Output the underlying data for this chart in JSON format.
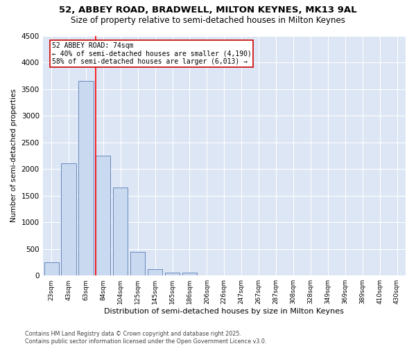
{
  "title1": "52, ABBEY ROAD, BRADWELL, MILTON KEYNES, MK13 9AL",
  "title2": "Size of property relative to semi-detached houses in Milton Keynes",
  "xlabel": "Distribution of semi-detached houses by size in Milton Keynes",
  "ylabel": "Number of semi-detached properties",
  "categories": [
    "23sqm",
    "43sqm",
    "63sqm",
    "84sqm",
    "104sqm",
    "125sqm",
    "145sqm",
    "165sqm",
    "186sqm",
    "206sqm",
    "226sqm",
    "247sqm",
    "267sqm",
    "287sqm",
    "308sqm",
    "328sqm",
    "349sqm",
    "369sqm",
    "389sqm",
    "410sqm",
    "430sqm"
  ],
  "values": [
    250,
    2100,
    3650,
    2250,
    1650,
    450,
    120,
    60,
    50,
    5,
    0,
    0,
    0,
    0,
    0,
    0,
    0,
    0,
    0,
    0,
    0
  ],
  "bar_color": "#c9d9f0",
  "bar_edge_color": "#6688bb",
  "red_line_label": "52 ABBEY ROAD: 74sqm",
  "annotation_line1": "← 40% of semi-detached houses are smaller (4,190)",
  "annotation_line2": "58% of semi-detached houses are larger (6,013) →",
  "annotation_box_color": "#ffffff",
  "annotation_box_edge": "#cc0000",
  "ylim": [
    0,
    4500
  ],
  "yticks": [
    0,
    500,
    1000,
    1500,
    2000,
    2500,
    3000,
    3500,
    4000,
    4500
  ],
  "background_color": "#dde6f5",
  "footer1": "Contains HM Land Registry data © Crown copyright and database right 2025.",
  "footer2": "Contains public sector information licensed under the Open Government Licence v3.0.",
  "title_fontsize": 9.5,
  "subtitle_fontsize": 8.5
}
